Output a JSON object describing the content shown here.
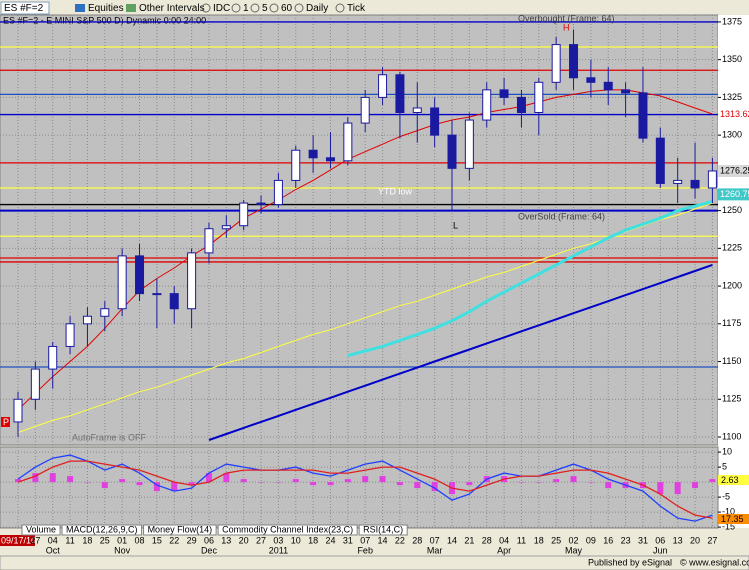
{
  "toolbar": {
    "symbol": "ES #F=2",
    "items": [
      "Equities",
      "Other Intervals",
      "IDC",
      "1",
      "5",
      "60",
      "Daily",
      "Tick"
    ]
  },
  "chart_data": [
    {
      "type": "candlestick",
      "title": "ES #F=2 - E MINI S&P 500 D) Dynamic 0:00 24:00",
      "x": [
        "09/17/10",
        "27",
        "04",
        "11",
        "18",
        "25",
        "01",
        "08",
        "15",
        "22",
        "29",
        "06",
        "13",
        "20",
        "27",
        "03",
        "10",
        "18",
        "24",
        "31",
        "07",
        "14",
        "22",
        "28",
        "07",
        "14",
        "21",
        "28",
        "04",
        "11",
        "18",
        "25",
        "02",
        "09",
        "16",
        "23",
        "31",
        "06",
        "13",
        "20",
        "27"
      ],
      "months": [
        null,
        null,
        "Oct",
        null,
        null,
        null,
        "Nov",
        null,
        null,
        null,
        null,
        "Dec",
        null,
        null,
        null,
        "2011",
        null,
        null,
        null,
        null,
        "Feb",
        null,
        null,
        null,
        "Mar",
        null,
        null,
        null,
        "Apr",
        null,
        null,
        null,
        "May",
        null,
        null,
        null,
        null,
        "Jun",
        null,
        null,
        null
      ],
      "open": [
        1110,
        1125,
        1145,
        1160,
        1175,
        1180,
        1185,
        1220,
        1195,
        1195,
        1185,
        1222,
        1238,
        1240,
        1255,
        1254,
        1270,
        1290,
        1285,
        1283,
        1308,
        1325,
        1340,
        1315,
        1318,
        1300,
        1278,
        1310,
        1330,
        1325,
        1315,
        1335,
        1360,
        1338,
        1335,
        1330,
        1328,
        1298,
        1268,
        1270,
        1265
      ],
      "high": [
        1130,
        1150,
        1163,
        1180,
        1186,
        1190,
        1225,
        1228,
        1205,
        1200,
        1225,
        1242,
        1247,
        1257,
        1260,
        1275,
        1293,
        1300,
        1302,
        1312,
        1330,
        1345,
        1342,
        1335,
        1325,
        1310,
        1315,
        1335,
        1338,
        1330,
        1338,
        1365,
        1370,
        1350,
        1345,
        1335,
        1345,
        1305,
        1285,
        1295,
        1285
      ],
      "low": [
        1100,
        1118,
        1132,
        1155,
        1160,
        1170,
        1180,
        1190,
        1172,
        1175,
        1172,
        1215,
        1232,
        1237,
        1248,
        1252,
        1265,
        1275,
        1278,
        1280,
        1302,
        1320,
        1298,
        1295,
        1292,
        1250,
        1270,
        1305,
        1320,
        1305,
        1300,
        1330,
        1330,
        1325,
        1320,
        1312,
        1295,
        1265,
        1255,
        1258,
        1255
      ],
      "close": [
        1125,
        1145,
        1160,
        1175,
        1180,
        1185,
        1220,
        1195,
        1195,
        1185,
        1222,
        1238,
        1240,
        1255,
        1254,
        1270,
        1290,
        1285,
        1283,
        1308,
        1325,
        1340,
        1315,
        1318,
        1300,
        1278,
        1310,
        1330,
        1325,
        1315,
        1335,
        1360,
        1338,
        1335,
        1330,
        1328,
        1298,
        1268,
        1270,
        1265,
        1276.25
      ],
      "up_color": "#ffffff",
      "down_color": "#1a1aa0",
      "series": [
        {
          "color": "#e00000",
          "width": 1,
          "values": [
            1118,
            1129,
            1140,
            1150,
            1160,
            1172,
            1185,
            1197,
            1205,
            1212,
            1220,
            1227,
            1236,
            1245,
            1251,
            1257,
            1264,
            1270,
            1277,
            1284,
            1289,
            1294,
            1299,
            1303,
            1307,
            1310,
            1312,
            1315,
            1317,
            1319,
            1322,
            1325,
            1327,
            1329,
            1330,
            1330,
            1328,
            1326,
            1322,
            1318,
            1314
          ]
        },
        {
          "color": "#ffff40",
          "width": 1,
          "values": [
            1103,
            1107,
            1111,
            1114,
            1118,
            1122,
            1126,
            1130,
            1133,
            1137,
            1141,
            1145,
            1149,
            1152,
            1156,
            1160,
            1164,
            1168,
            1171,
            1175,
            1179,
            1183,
            1187,
            1190,
            1194,
            1198,
            1202,
            1206,
            1209,
            1213,
            1217,
            1221,
            1225,
            1228,
            1232,
            1236,
            1240,
            1244,
            1247,
            1251,
            1255
          ]
        },
        {
          "color": "#40e0e0",
          "width": 3,
          "values": [
            null,
            null,
            null,
            null,
            null,
            null,
            null,
            null,
            null,
            null,
            null,
            null,
            null,
            null,
            null,
            null,
            null,
            null,
            null,
            1154,
            1157,
            1160,
            1164,
            1168,
            1172,
            1177,
            1183,
            1190,
            1196,
            1202,
            1208,
            1214,
            1220,
            1226,
            1232,
            1237,
            1241,
            1245,
            1250,
            1253,
            1256
          ]
        },
        {
          "color": "#0000c8",
          "width": 2,
          "values": [
            null,
            null,
            null,
            null,
            null,
            null,
            null,
            null,
            null,
            null,
            null,
            1098,
            1102,
            1106,
            1110,
            1114,
            1118,
            1122,
            1126,
            1130,
            1134,
            1138,
            1142,
            1146,
            1150,
            1154,
            1158,
            1162,
            1166,
            1170,
            1174,
            1178,
            1182,
            1186,
            1190,
            1194,
            1198,
            1202,
            1206,
            1210,
            1214
          ]
        }
      ],
      "levels": [
        {
          "value": 1375,
          "color": "#0000c8"
        },
        {
          "value": 1358.4,
          "color": "#ffff40"
        },
        {
          "value": 1343,
          "color": "#e00000"
        },
        {
          "value": 1327,
          "color": "#2050c0"
        },
        {
          "value": 1313.62,
          "color": "#0000c8"
        },
        {
          "value": 1281.6,
          "color": "#e00000"
        },
        {
          "value": 1265,
          "color": "#ffff40"
        },
        {
          "value": 1254,
          "color": "#000000"
        },
        {
          "value": 1250,
          "color": "#0000c8"
        },
        {
          "value": 1233,
          "color": "#ffff40"
        },
        {
          "value": 1218.6,
          "color": "#e00000"
        },
        {
          "value": 1216,
          "color": "#e00000"
        },
        {
          "value": 1146.4,
          "color": "#2050c0"
        }
      ],
      "price_labels": [
        {
          "value": 1313.62,
          "color": "#ffffff",
          "text_color": "#e00000"
        },
        {
          "value": 1276.25,
          "color": "#d8d8d8",
          "text_color": "#000000"
        },
        {
          "value": 1260.75,
          "color": "#40c8c8",
          "text_color": "#ffffff"
        }
      ],
      "ylim": [
        1094.7,
        1379.6
      ],
      "yticks": [
        1100,
        1125,
        1150,
        1175,
        1200,
        1225,
        1250,
        1300,
        1325,
        1350,
        1375
      ],
      "grid": true,
      "annotations": {
        "ytd": "YTD low",
        "low": "L",
        "high": "H",
        "overbought": "Overbought (Frame: 64)",
        "oversold": "OverSold (Frame: 64)",
        "autoframe": "AutoFrame is OFF",
        "p": "P"
      }
    },
    {
      "type": "line",
      "series": [
        {
          "color": "#2040ff",
          "values": [
            1,
            5,
            8,
            9,
            7,
            4,
            6,
            3,
            -1,
            -3,
            -2,
            3,
            6,
            5,
            4,
            4,
            5,
            3,
            2,
            4,
            6,
            7,
            4,
            1,
            -2,
            -6,
            -4,
            1,
            3,
            2,
            2,
            4,
            6,
            4,
            1,
            -1,
            -3,
            -8,
            -12,
            -13,
            -11
          ]
        },
        {
          "color": "#e02020",
          "values": [
            0,
            2,
            5,
            7,
            7,
            6,
            5,
            4,
            2,
            0,
            -1,
            0,
            3,
            4,
            4,
            4,
            4,
            4,
            3,
            3,
            4,
            5,
            5,
            3,
            1,
            -2,
            -3,
            -1,
            1,
            2,
            2,
            3,
            4,
            4,
            3,
            1,
            -1,
            -4,
            -8,
            -11,
            -12
          ]
        }
      ],
      "histogram": {
        "color": "#e040e0",
        "values": [
          1,
          3,
          3,
          2,
          0,
          -2,
          1,
          -1,
          -3,
          -3,
          -1,
          3,
          3,
          1,
          0,
          0,
          1,
          -1,
          -1,
          1,
          2,
          2,
          -1,
          -2,
          -3,
          -4,
          -1,
          2,
          2,
          0,
          0,
          1,
          2,
          0,
          -2,
          -2,
          -2,
          -4,
          -4,
          -2,
          1
        ]
      },
      "ylim": [
        -15.3,
        11.7
      ],
      "yticks": [
        10,
        5,
        0,
        -5,
        -10,
        -15
      ],
      "grid": true,
      "readouts": [
        {
          "text": "2.63",
          "color": "#ffff40"
        },
        {
          "text": "17.35",
          "color": "#ff8c00"
        }
      ]
    }
  ],
  "tabs": [
    "Volume",
    "MACD(12,26,9,C)",
    "Money Flow(14)",
    "Commodity Channel Index(23,C)",
    "RSI(14,C)"
  ],
  "footer": {
    "publisher": "Published by eSignal",
    "site": "© www.esignal.com"
  }
}
